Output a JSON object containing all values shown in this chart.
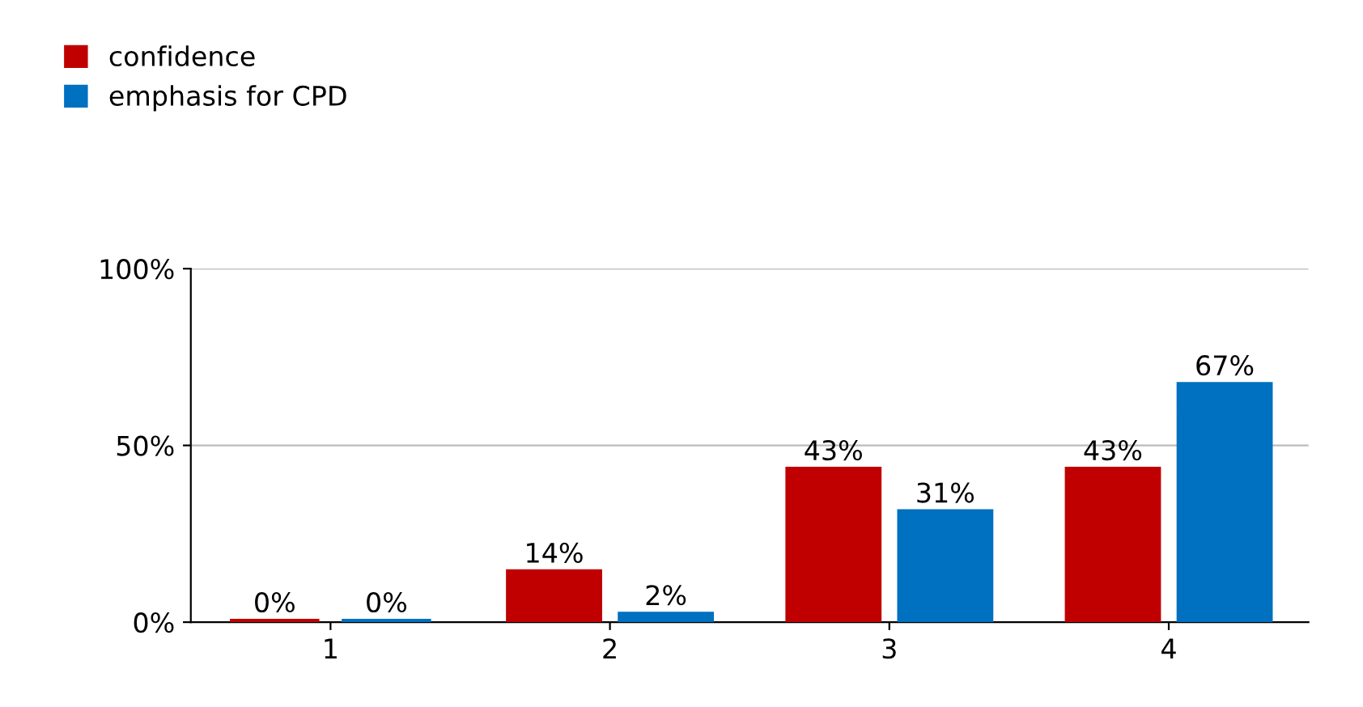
{
  "chart_data": {
    "type": "bar",
    "categories": [
      "1",
      "2",
      "3",
      "4"
    ],
    "series": [
      {
        "name": "confidence",
        "color": "#c00000",
        "values": [
          0,
          14,
          43,
          43
        ],
        "value_labels": [
          "0%",
          "14%",
          "43%",
          "43%"
        ]
      },
      {
        "name": "emphasis for CPD",
        "color": "#0070c0",
        "values": [
          0,
          2,
          31,
          67
        ],
        "value_labels": [
          "0%",
          "2%",
          "31%",
          "67%"
        ]
      }
    ],
    "ylim": [
      0,
      100
    ],
    "yticks": [
      {
        "value": 0,
        "label": "0%"
      },
      {
        "value": 50,
        "label": "50%"
      },
      {
        "value": 100,
        "label": "100%"
      }
    ],
    "grid": "y",
    "legend": "top left"
  }
}
